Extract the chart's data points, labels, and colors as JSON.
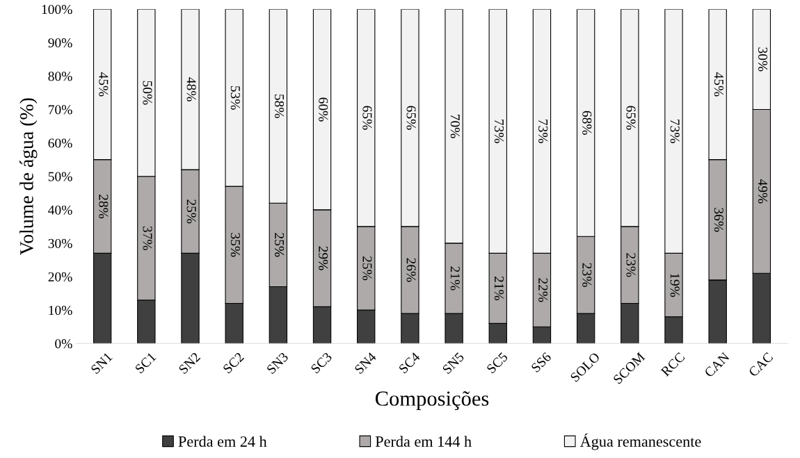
{
  "chart_data": {
    "type": "bar",
    "stacked": true,
    "xlabel": "Composições",
    "ylabel": "Volume de água (%)",
    "categories": [
      "SN1",
      "SC1",
      "SN2",
      "SC2",
      "SN3",
      "SC3",
      "SN4",
      "SC4",
      "SN5",
      "SC5",
      "SS6",
      "SOLO",
      "SCOM",
      "RCC",
      "CAN",
      "CAC"
    ],
    "series": [
      {
        "name": "Perda em 24 h",
        "color": "#404040",
        "values": [
          27,
          13,
          27,
          12,
          17,
          11,
          10,
          9,
          9,
          6,
          5,
          9,
          12,
          8,
          19,
          21
        ]
      },
      {
        "name": "Perda em 144 h",
        "color": "#aeaaaa",
        "values": [
          28,
          37,
          25,
          35,
          25,
          29,
          25,
          26,
          21,
          21,
          22,
          23,
          23,
          19,
          36,
          49
        ],
        "value_labels": [
          "28%",
          "37%",
          "25%",
          "35%",
          "25%",
          "29%",
          "25%",
          "26%",
          "21%",
          "21%",
          "22%",
          "23%",
          "23%",
          "19%",
          "36%",
          "49%"
        ]
      },
      {
        "name": "Água remanescente",
        "color": "#f2f2f2",
        "values": [
          45,
          50,
          48,
          53,
          58,
          60,
          65,
          65,
          70,
          73,
          73,
          68,
          65,
          73,
          45,
          30
        ],
        "value_labels": [
          "45%",
          "50%",
          "48%",
          "53%",
          "58%",
          "60%",
          "65%",
          "65%",
          "70%",
          "73%",
          "73%",
          "68%",
          "65%",
          "73%",
          "45%",
          "30%"
        ]
      }
    ],
    "ylim": [
      0,
      100
    ],
    "yticks": [
      {
        "value": 0,
        "label": "0%"
      },
      {
        "value": 10,
        "label": "10%"
      },
      {
        "value": 20,
        "label": "20%"
      },
      {
        "value": 30,
        "label": "30%"
      },
      {
        "value": 40,
        "label": "40%"
      },
      {
        "value": 50,
        "label": "50%"
      },
      {
        "value": 60,
        "label": "60%"
      },
      {
        "value": 70,
        "label": "70%"
      },
      {
        "value": 80,
        "label": "80%"
      },
      {
        "value": 90,
        "label": "90%"
      },
      {
        "value": 100,
        "label": "100%"
      }
    ],
    "grid": false,
    "legend": "bottom"
  }
}
